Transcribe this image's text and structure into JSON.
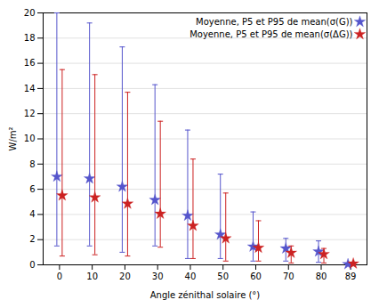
{
  "chart_data": {
    "type": "errorbar",
    "xlabel": "Angle zénithal solaire (°)",
    "ylabel": "W/m²",
    "x": [
      0,
      10,
      20,
      30,
      40,
      50,
      60,
      70,
      80,
      89
    ],
    "series": [
      {
        "name": "Moyenne, P5 et P95 de mean(σ(G))",
        "color": "#5555cc",
        "marker": "star",
        "values": [
          7.0,
          6.85,
          6.2,
          5.15,
          3.9,
          2.4,
          1.45,
          1.3,
          1.05,
          0.05
        ],
        "p5": [
          1.5,
          1.5,
          1.0,
          1.5,
          0.5,
          0.5,
          0.3,
          0.3,
          0.2,
          0.0
        ],
        "p95": [
          20.0,
          19.2,
          17.3,
          14.3,
          10.7,
          7.2,
          4.2,
          2.1,
          1.9,
          0.15
        ]
      },
      {
        "name": "Moyenne, P5 et P95 de mean(σ(ΔG))",
        "color": "#cc2222",
        "marker": "star",
        "values": [
          5.5,
          5.35,
          4.85,
          4.05,
          3.1,
          2.1,
          1.35,
          0.95,
          0.85,
          0.1
        ],
        "p5": [
          0.7,
          0.8,
          0.7,
          1.4,
          0.5,
          0.3,
          0.3,
          0.15,
          0.15,
          0.0
        ],
        "p95": [
          15.5,
          15.1,
          13.7,
          11.4,
          8.4,
          5.7,
          3.5,
          1.5,
          1.3,
          0.2
        ]
      }
    ],
    "xlim": [
      -5,
      94
    ],
    "xticks": [
      0,
      10,
      20,
      30,
      40,
      50,
      60,
      70,
      80,
      89
    ],
    "ylim": [
      0,
      20
    ],
    "yticks": [
      0,
      2,
      4,
      6,
      8,
      10,
      12,
      14,
      16,
      18,
      20
    ],
    "grid": true,
    "legend": "upper right"
  }
}
